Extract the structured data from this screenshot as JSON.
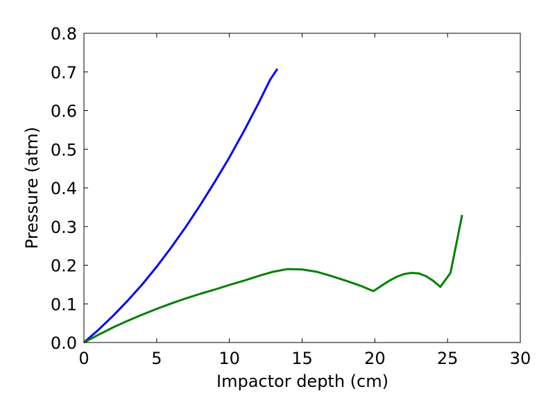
{
  "chart_data": {
    "type": "line",
    "title": "",
    "xlabel": "Impactor depth (cm)",
    "ylabel": "Pressure (atm)",
    "xlim": [
      0,
      30
    ],
    "ylim": [
      0,
      0.8
    ],
    "x_ticks": [
      0,
      5,
      10,
      15,
      20,
      25,
      30
    ],
    "y_ticks": [
      0.0,
      0.1,
      0.2,
      0.3,
      0.4,
      0.5,
      0.6,
      0.7,
      0.8
    ],
    "x_tick_labels": [
      "0",
      "5",
      "10",
      "15",
      "20",
      "25",
      "30"
    ],
    "y_tick_labels": [
      "0.0",
      "0.1",
      "0.2",
      "0.3",
      "0.4",
      "0.5",
      "0.6",
      "0.7",
      "0.8"
    ],
    "grid": false,
    "legend": "none",
    "series": [
      {
        "color": "#0000ff",
        "points": [
          [
            0,
            0
          ],
          [
            1,
            0.033
          ],
          [
            2,
            0.069
          ],
          [
            3,
            0.108
          ],
          [
            4,
            0.15
          ],
          [
            5,
            0.196
          ],
          [
            6,
            0.246
          ],
          [
            7,
            0.299
          ],
          [
            8,
            0.356
          ],
          [
            9,
            0.416
          ],
          [
            10,
            0.479
          ],
          [
            11,
            0.547
          ],
          [
            12,
            0.619
          ],
          [
            12.8,
            0.68
          ],
          [
            13.3,
            0.708
          ]
        ]
      },
      {
        "color": "#008000",
        "points": [
          [
            0,
            0
          ],
          [
            1,
            0.02
          ],
          [
            2,
            0.039
          ],
          [
            3,
            0.056
          ],
          [
            4,
            0.072
          ],
          [
            5,
            0.087
          ],
          [
            6,
            0.101
          ],
          [
            7,
            0.114
          ],
          [
            8,
            0.126
          ],
          [
            9,
            0.137
          ],
          [
            10,
            0.149
          ],
          [
            11,
            0.16
          ],
          [
            12,
            0.172
          ],
          [
            13,
            0.183
          ],
          [
            14,
            0.19
          ],
          [
            15,
            0.189
          ],
          [
            16,
            0.183
          ],
          [
            17,
            0.172
          ],
          [
            18,
            0.16
          ],
          [
            19,
            0.147
          ],
          [
            19.9,
            0.133
          ],
          [
            20.5,
            0.148
          ],
          [
            21,
            0.16
          ],
          [
            21.5,
            0.17
          ],
          [
            22,
            0.177
          ],
          [
            22.5,
            0.18
          ],
          [
            23,
            0.179
          ],
          [
            23.5,
            0.172
          ],
          [
            24,
            0.16
          ],
          [
            24.5,
            0.144
          ],
          [
            25.2,
            0.18
          ],
          [
            25.6,
            0.255
          ],
          [
            26,
            0.33
          ]
        ]
      }
    ]
  }
}
